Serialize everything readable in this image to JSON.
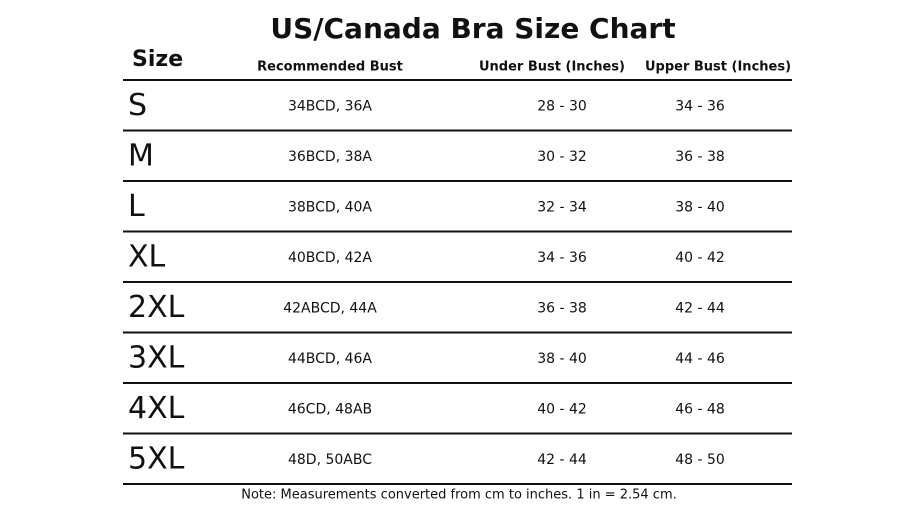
{
  "title": "US/Canada Bra Size Chart",
  "table": {
    "headers": [
      "Size",
      "Recommended Bust",
      "Under Bust (Inches)",
      "Upper Bust (Inches)"
    ],
    "rows": [
      [
        "S",
        "34BCD, 36A",
        "28 - 30",
        "34 - 36"
      ],
      [
        "M",
        "36BCD, 38A",
        "30 - 32",
        "36 - 38"
      ],
      [
        "L",
        "38BCD, 40A",
        "32 - 34",
        "38 - 40"
      ],
      [
        "XL",
        "40BCD, 42A",
        "34 - 36",
        "40 - 42"
      ],
      [
        "2XL",
        "42ABCD, 44A",
        "36 - 38",
        "42 - 44"
      ],
      [
        "3XL",
        "44BCD, 46A",
        "38 - 40",
        "44 - 46"
      ],
      [
        "4XL",
        "46CD, 48AB",
        "40 - 42",
        "46 - 48"
      ],
      [
        "5XL",
        "48D, 50ABC",
        "42 - 44",
        "48 - 50"
      ]
    ]
  },
  "note": "Note: Measurements converted from cm to inches. 1 in = 2.54 cm."
}
